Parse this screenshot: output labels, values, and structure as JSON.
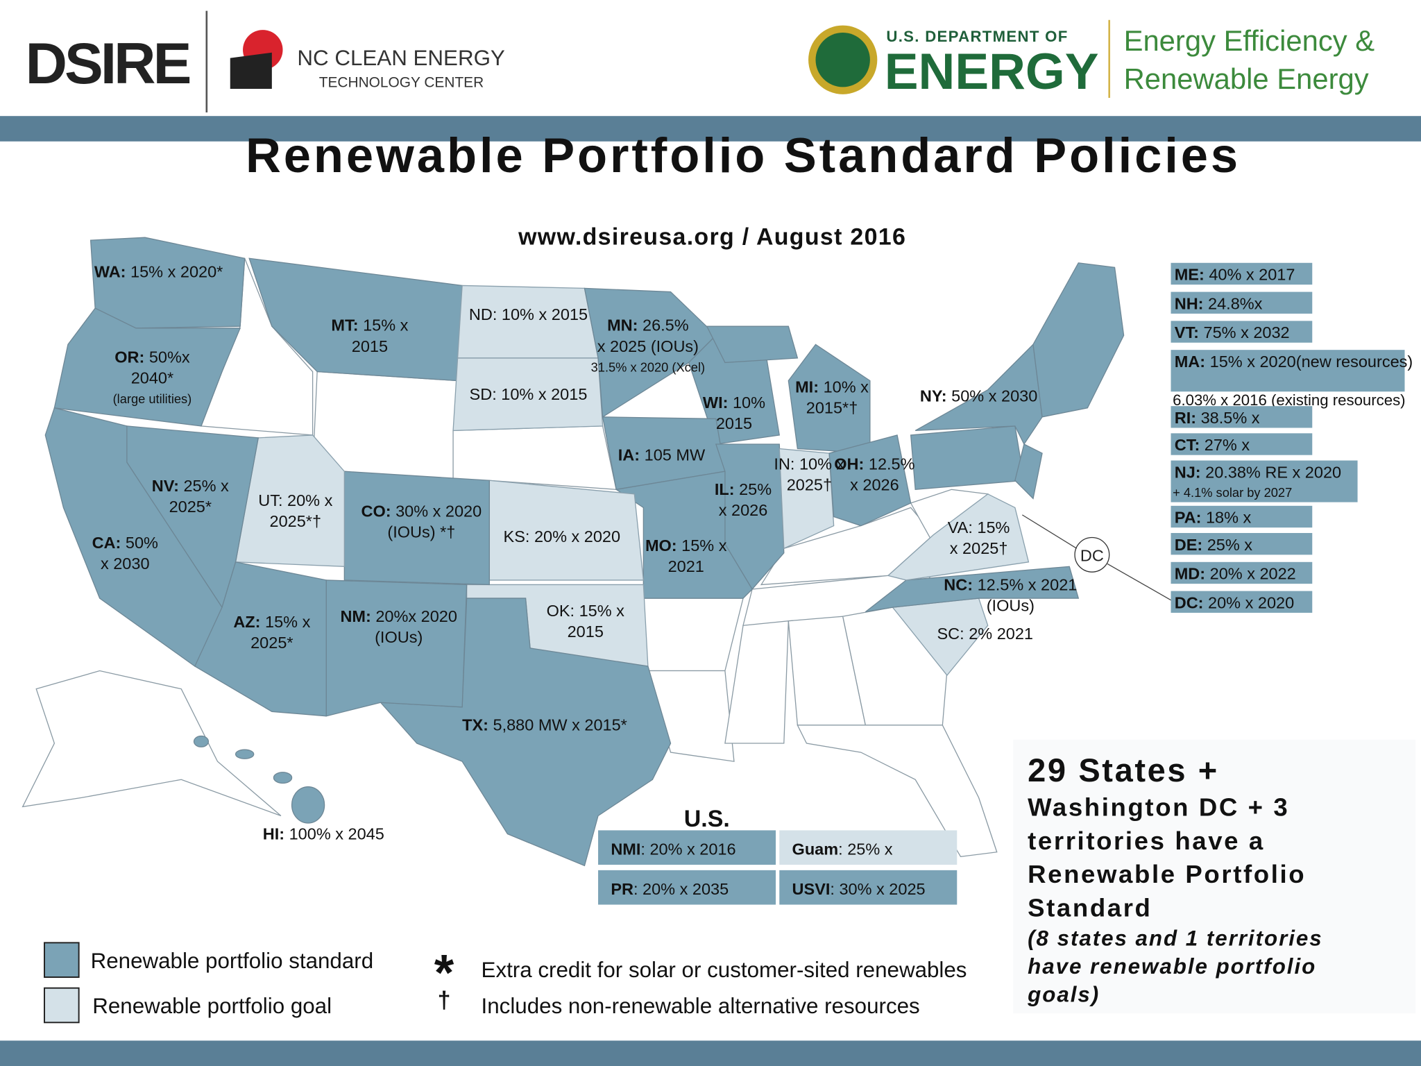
{
  "header": {
    "dsire": "DSIRE",
    "nc": [
      "NC CLEAN ENERGY",
      "TECHNOLOGY CENTER"
    ],
    "doe": [
      "U.S. DEPARTMENT OF",
      "ENERGY"
    ],
    "eere": [
      "Energy Efficiency &",
      "Renewable Energy"
    ]
  },
  "title": "Renewable Portfolio Standard Policies",
  "subtitle": "www.dsireusa.org / August 2016",
  "states": [
    {
      "abbr": "WA:",
      "lines": [
        "15% x 2020*"
      ]
    },
    {
      "abbr": "OR:",
      "lines": [
        "50%x",
        "2040*"
      ],
      "note": "(large utilities)"
    },
    {
      "abbr": "MT:",
      "lines": [
        "15% x",
        "2015"
      ]
    },
    {
      "abbr": "ND:",
      "lines": [
        "10% x 2015"
      ]
    },
    {
      "abbr": "SD:",
      "lines": [
        "10% x 2015"
      ]
    },
    {
      "abbr": "MN:",
      "lines": [
        "26.5%",
        "x 2025 (IOUs)"
      ],
      "note": "31.5% x 2020 (Xcel)"
    },
    {
      "abbr": "WI:",
      "lines": [
        "10%",
        "2015"
      ]
    },
    {
      "abbr": "MI:",
      "lines": [
        "10% x",
        "2015*†"
      ]
    },
    {
      "abbr": "NY:",
      "lines": [
        "50% x 2030"
      ]
    },
    {
      "abbr": "IA:",
      "lines": [
        "105 MW"
      ]
    },
    {
      "abbr": "IN:",
      "lines": [
        "10% x",
        "2025†"
      ]
    },
    {
      "abbr": "OH:",
      "lines": [
        "12.5%",
        "x 2026"
      ]
    },
    {
      "abbr": "IL:",
      "lines": [
        "25%",
        "x 2026"
      ]
    },
    {
      "abbr": "NV:",
      "lines": [
        "25% x",
        "2025*"
      ]
    },
    {
      "abbr": "UT:",
      "lines": [
        "20% x",
        "2025*†"
      ]
    },
    {
      "abbr": "CO:",
      "lines": [
        "30% x 2020",
        "(IOUs) *†"
      ]
    },
    {
      "abbr": "KS:",
      "lines": [
        "20% x 2020"
      ]
    },
    {
      "abbr": "MO:",
      "lines": [
        "15% x",
        "2021"
      ]
    },
    {
      "abbr": "CA:",
      "lines": [
        "50%",
        "x 2030"
      ]
    },
    {
      "abbr": "VA:",
      "lines": [
        "15%",
        "x 2025†"
      ]
    },
    {
      "abbr": "NC:",
      "lines": [
        "12.5% x 2021",
        "(IOUs)"
      ]
    },
    {
      "abbr": "SC:",
      "lines": [
        "2% 2021"
      ]
    },
    {
      "abbr": "OK:",
      "lines": [
        "15% x",
        "2015"
      ]
    },
    {
      "abbr": "AZ:",
      "lines": [
        "15% x",
        "2025*"
      ]
    },
    {
      "abbr": "NM:",
      "lines": [
        "20%x 2020",
        "(IOUs)"
      ]
    },
    {
      "abbr": "TX:",
      "lines": [
        "5,880 MW x 2015*"
      ]
    },
    {
      "abbr": "HI:",
      "lines": [
        "100% x 2045"
      ]
    }
  ],
  "dc_marker": "DC",
  "northeast": [
    {
      "abbr": "ME:",
      "lines": [
        "40% x 2017"
      ]
    },
    {
      "abbr": "NH:",
      "lines": [
        "24.8%x"
      ]
    },
    {
      "abbr": "VT:",
      "lines": [
        "75% x 2032"
      ]
    },
    {
      "abbr": "MA:",
      "lines": [
        "15% x 2020(new resources)",
        "6.03% x 2016 (existing resources)"
      ]
    },
    {
      "abbr": "RI:",
      "lines": [
        "38.5% x"
      ]
    },
    {
      "abbr": "CT:",
      "lines": [
        "27% x"
      ]
    },
    {
      "abbr": "NJ:",
      "lines": [
        "20.38% RE x 2020",
        "+ 4.1% solar by 2027"
      ]
    },
    {
      "abbr": "PA:",
      "lines": [
        "18% x"
      ]
    },
    {
      "abbr": "DE:",
      "lines": [
        "25% x"
      ]
    },
    {
      "abbr": "MD:",
      "lines": [
        "20% x 2022"
      ]
    },
    {
      "abbr": "DC:",
      "lines": [
        "20% x 2020"
      ]
    }
  ],
  "territories": {
    "title": "U.S.",
    "items": [
      {
        "abbr": "NMI",
        "text": ": 20% x 2016"
      },
      {
        "abbr": "Guam",
        "text": ": 25% x"
      },
      {
        "abbr": "PR",
        "text": ": 20% x 2035"
      },
      {
        "abbr": "USVI",
        "text": ": 30% x 2025"
      }
    ]
  },
  "legend": [
    {
      "label": "Renewable portfolio standard",
      "color": "#7ba3b6"
    },
    {
      "label": "Renewable portfolio goal",
      "color": "#d4e1e8"
    }
  ],
  "symbols": [
    {
      "symbol": "*",
      "text": "Extra credit for solar or customer-sited renewables"
    },
    {
      "symbol": "†",
      "text": "Includes non-renewable alternative resources"
    }
  ],
  "summary": {
    "lines": [
      "29 States +",
      "Washington DC + 3",
      "territories have a",
      "Renewable Portfolio",
      "Standard"
    ],
    "note": [
      "(8 states and 1 territories",
      "have renewable portfolio",
      "goals)"
    ]
  }
}
